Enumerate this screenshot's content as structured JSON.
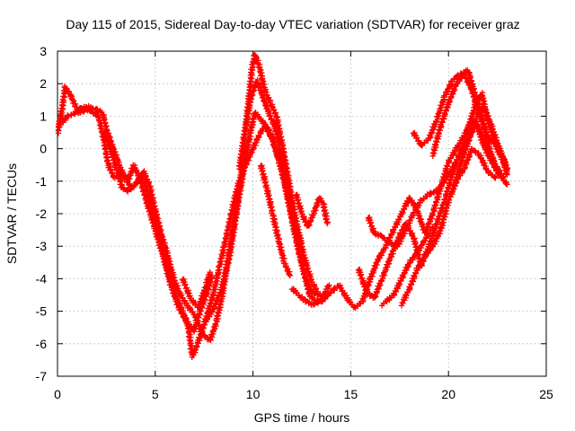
{
  "chart_data": {
    "type": "scatter",
    "title": "Day 115 of 2015, Sidereal Day-to-day VTEC variation (SDTVAR) for receiver graz",
    "xlabel": "GPS time / hours",
    "ylabel": "SDTVAR / TECUs",
    "xlim": [
      0,
      25
    ],
    "ylim": [
      -7,
      3
    ],
    "xticks": [
      "0",
      "5",
      "10",
      "15",
      "20",
      "25"
    ],
    "yticks": [
      "3",
      "2",
      "1",
      "0",
      "-1",
      "-2",
      "-3",
      "-4",
      "-5",
      "-6",
      "-7"
    ],
    "grid": true,
    "marker": "plus",
    "color": "#ff0000",
    "series": [
      {
        "name": "",
        "tracks": [
          [
            [
              0.0,
              0.5
            ],
            [
              0.2,
              1.1
            ],
            [
              0.4,
              1.9
            ],
            [
              0.7,
              1.6
            ],
            [
              1.0,
              1.2
            ],
            [
              1.5,
              1.3
            ],
            [
              2.0,
              1.2
            ],
            [
              2.3,
              1.1
            ],
            [
              2.5,
              0.6
            ],
            [
              2.8,
              0.1
            ],
            [
              3.1,
              -0.4
            ],
            [
              3.4,
              -0.9
            ],
            [
              3.8,
              -1.2
            ],
            [
              4.1,
              -1.0
            ],
            [
              4.3,
              -0.8
            ],
            [
              4.6,
              -1.3
            ],
            [
              4.9,
              -2.0
            ],
            [
              5.2,
              -2.7
            ],
            [
              5.5,
              -3.4
            ],
            [
              5.8,
              -4.1
            ],
            [
              6.1,
              -4.6
            ],
            [
              6.4,
              -5.0
            ],
            [
              6.7,
              -5.5
            ],
            [
              6.9,
              -6.4
            ],
            [
              7.1,
              -6.1
            ],
            [
              7.4,
              -5.6
            ],
            [
              7.7,
              -5.0
            ],
            [
              8.0,
              -4.4
            ],
            [
              8.3,
              -3.6
            ],
            [
              8.6,
              -2.8
            ],
            [
              8.9,
              -2.0
            ],
            [
              9.1,
              -1.4
            ],
            [
              9.4,
              -0.8
            ],
            [
              9.7,
              -0.4
            ],
            [
              10.0,
              0.0
            ],
            [
              10.3,
              0.4
            ],
            [
              10.6,
              0.7
            ],
            [
              11.0,
              0.3
            ],
            [
              11.3,
              -0.3
            ],
            [
              11.6,
              -1.0
            ],
            [
              11.9,
              -1.8
            ],
            [
              12.2,
              -2.4
            ],
            [
              12.5,
              -2.9
            ]
          ],
          [
            [
              0.1,
              0.7
            ],
            [
              0.5,
              1.0
            ],
            [
              1.0,
              1.1
            ],
            [
              1.6,
              1.2
            ],
            [
              2.1,
              1.0
            ],
            [
              2.4,
              0.2
            ],
            [
              2.6,
              -0.5
            ],
            [
              2.9,
              -0.9
            ],
            [
              3.3,
              -0.7
            ],
            [
              3.6,
              -1.0
            ],
            [
              3.9,
              -0.5
            ],
            [
              4.2,
              -0.9
            ],
            [
              4.6,
              -1.7
            ],
            [
              5.0,
              -2.5
            ],
            [
              5.4,
              -3.3
            ],
            [
              5.8,
              -4.2
            ],
            [
              6.2,
              -4.9
            ],
            [
              6.6,
              -5.3
            ],
            [
              7.0,
              -5.6
            ],
            [
              7.3,
              -5.0
            ],
            [
              7.6,
              -4.5
            ],
            [
              7.9,
              -3.9
            ]
          ],
          [
            [
              2.4,
              0.5
            ],
            [
              2.7,
              0.0
            ],
            [
              3.0,
              -0.6
            ],
            [
              3.3,
              -1.2
            ],
            [
              3.6,
              -1.3
            ],
            [
              4.0,
              -1.1
            ],
            [
              4.4,
              -0.7
            ],
            [
              4.7,
              -1.1
            ],
            [
              5.0,
              -1.9
            ],
            [
              5.3,
              -2.6
            ],
            [
              5.6,
              -3.2
            ],
            [
              5.9,
              -3.9
            ],
            [
              6.2,
              -4.4
            ],
            [
              6.6,
              -4.8
            ],
            [
              7.0,
              -5.1
            ],
            [
              7.4,
              -5.7
            ],
            [
              7.8,
              -5.9
            ],
            [
              8.1,
              -5.4
            ],
            [
              8.4,
              -4.6
            ],
            [
              8.7,
              -3.5
            ],
            [
              9.0,
              -2.4
            ],
            [
              9.3,
              -1.4
            ],
            [
              9.6,
              -0.4
            ],
            [
              9.9,
              0.6
            ],
            [
              10.1,
              1.1
            ],
            [
              10.4,
              0.9
            ],
            [
              10.8,
              0.6
            ],
            [
              11.1,
              0.1
            ],
            [
              11.5,
              -0.7
            ],
            [
              11.8,
              -1.6
            ],
            [
              12.1,
              -2.5
            ],
            [
              12.4,
              -3.3
            ],
            [
              12.7,
              -4.0
            ],
            [
              13.0,
              -4.4
            ],
            [
              13.4,
              -4.5
            ],
            [
              13.7,
              -4.6
            ]
          ],
          [
            [
              7.6,
              -5.3
            ],
            [
              8.0,
              -4.9
            ],
            [
              8.4,
              -4.3
            ],
            [
              8.8,
              -3.3
            ],
            [
              9.1,
              -2.2
            ],
            [
              9.4,
              -0.9
            ],
            [
              9.6,
              0.5
            ],
            [
              9.8,
              1.6
            ],
            [
              9.95,
              2.5
            ],
            [
              10.1,
              2.9
            ],
            [
              10.3,
              2.6
            ],
            [
              10.6,
              1.8
            ],
            [
              10.9,
              1.4
            ],
            [
              11.2,
              1.0
            ],
            [
              11.5,
              0.1
            ],
            [
              11.8,
              -0.9
            ],
            [
              12.1,
              -1.9
            ],
            [
              12.4,
              -2.8
            ],
            [
              12.7,
              -3.5
            ],
            [
              13.0,
              -4.1
            ],
            [
              13.3,
              -4.4
            ]
          ],
          [
            [
              9.3,
              -0.6
            ],
            [
              9.6,
              0.6
            ],
            [
              9.9,
              1.6
            ],
            [
              10.2,
              2.1
            ],
            [
              10.5,
              1.6
            ],
            [
              10.8,
              1.1
            ],
            [
              11.1,
              0.7
            ],
            [
              11.4,
              0.0
            ],
            [
              11.7,
              -1.0
            ],
            [
              12.0,
              -2.0
            ],
            [
              12.3,
              -3.0
            ],
            [
              12.6,
              -3.8
            ],
            [
              12.9,
              -4.5
            ],
            [
              13.2,
              -4.7
            ],
            [
              13.5,
              -4.6
            ],
            [
              13.9,
              -4.2
            ]
          ],
          [
            [
              10.4,
              -0.5
            ],
            [
              10.7,
              -1.2
            ],
            [
              11.0,
              -2.0
            ],
            [
              11.3,
              -2.8
            ],
            [
              11.6,
              -3.5
            ],
            [
              11.9,
              -3.9
            ]
          ],
          [
            [
              12.2,
              -1.4
            ],
            [
              12.5,
              -2.0
            ],
            [
              12.8,
              -2.4
            ],
            [
              13.1,
              -2.0
            ],
            [
              13.4,
              -1.5
            ],
            [
              13.6,
              -1.7
            ],
            [
              13.8,
              -2.3
            ]
          ],
          [
            [
              12.0,
              -4.3
            ],
            [
              12.5,
              -4.6
            ],
            [
              13.0,
              -4.8
            ],
            [
              13.5,
              -4.7
            ],
            [
              14.0,
              -4.4
            ],
            [
              14.4,
              -4.2
            ],
            [
              14.8,
              -4.6
            ],
            [
              15.2,
              -4.9
            ],
            [
              15.6,
              -4.7
            ],
            [
              16.0,
              -4.0
            ],
            [
              16.4,
              -3.4
            ],
            [
              16.8,
              -3.0
            ],
            [
              17.2,
              -2.5
            ],
            [
              17.6,
              -2.0
            ],
            [
              18.0,
              -1.5
            ],
            [
              18.4,
              -1.9
            ],
            [
              18.8,
              -2.6
            ],
            [
              19.2,
              -2.0
            ],
            [
              19.6,
              -1.2
            ],
            [
              20.0,
              -0.4
            ],
            [
              20.4,
              0.0
            ],
            [
              20.8,
              0.4
            ],
            [
              21.2,
              0.9
            ],
            [
              21.6,
              0.6
            ],
            [
              22.0,
              0.0
            ],
            [
              22.4,
              -0.5
            ],
            [
              22.8,
              -0.9
            ]
          ],
          [
            [
              15.4,
              -3.7
            ],
            [
              15.8,
              -4.4
            ],
            [
              16.2,
              -4.6
            ],
            [
              16.6,
              -4.0
            ],
            [
              17.0,
              -3.4
            ],
            [
              17.4,
              -2.8
            ],
            [
              17.8,
              -2.3
            ],
            [
              18.2,
              -2.7
            ],
            [
              18.6,
              -3.6
            ],
            [
              19.0,
              -3.0
            ],
            [
              19.4,
              -2.3
            ],
            [
              19.8,
              -1.6
            ],
            [
              20.2,
              -0.8
            ],
            [
              20.6,
              -0.1
            ],
            [
              21.0,
              0.6
            ],
            [
              21.4,
              1.4
            ],
            [
              21.7,
              1.7
            ],
            [
              22.0,
              0.9
            ],
            [
              22.4,
              0.2
            ],
            [
              22.8,
              -0.3
            ],
            [
              23.0,
              -0.7
            ]
          ],
          [
            [
              15.9,
              -2.1
            ],
            [
              16.2,
              -2.6
            ],
            [
              16.6,
              -2.7
            ],
            [
              17.0,
              -2.9
            ],
            [
              17.4,
              -3.0
            ],
            [
              17.8,
              -2.5
            ],
            [
              18.2,
              -2.0
            ],
            [
              18.6,
              -1.6
            ],
            [
              19.0,
              -1.4
            ],
            [
              19.4,
              -1.3
            ],
            [
              19.8,
              -1.0
            ],
            [
              20.2,
              -0.6
            ],
            [
              20.6,
              -0.2
            ],
            [
              21.0,
              0.3
            ],
            [
              21.4,
              0.8
            ],
            [
              21.8,
              0.1
            ],
            [
              22.2,
              -0.4
            ],
            [
              22.6,
              -0.8
            ],
            [
              23.0,
              -1.1
            ]
          ],
          [
            [
              17.6,
              -4.8
            ],
            [
              18.0,
              -4.3
            ],
            [
              18.4,
              -3.7
            ],
            [
              18.8,
              -3.3
            ],
            [
              19.2,
              -3.0
            ],
            [
              19.6,
              -2.5
            ],
            [
              20.0,
              -1.6
            ],
            [
              20.4,
              -1.0
            ],
            [
              20.8,
              -0.6
            ],
            [
              21.2,
              0.0
            ],
            [
              21.6,
              -0.2
            ],
            [
              22.0,
              -0.7
            ],
            [
              22.4,
              -0.9
            ]
          ],
          [
            [
              18.2,
              0.5
            ],
            [
              18.6,
              0.1
            ],
            [
              19.0,
              0.3
            ],
            [
              19.4,
              0.9
            ],
            [
              19.8,
              1.6
            ],
            [
              20.2,
              2.1
            ],
            [
              20.6,
              2.3
            ],
            [
              21.0,
              2.4
            ],
            [
              21.4,
              1.6
            ],
            [
              21.8,
              0.8
            ],
            [
              22.1,
              0.0
            ],
            [
              22.4,
              -0.6
            ],
            [
              22.7,
              -0.8
            ]
          ],
          [
            [
              19.2,
              -0.2
            ],
            [
              19.6,
              0.7
            ],
            [
              20.0,
              1.4
            ],
            [
              20.4,
              2.0
            ],
            [
              20.8,
              2.3
            ],
            [
              21.2,
              1.8
            ],
            [
              21.6,
              1.0
            ],
            [
              22.0,
              0.4
            ],
            [
              22.4,
              0.1
            ],
            [
              22.8,
              -0.4
            ],
            [
              23.0,
              -0.8
            ]
          ],
          [
            [
              20.2,
              -1.3
            ],
            [
              20.6,
              -0.5
            ],
            [
              21.0,
              0.2
            ],
            [
              21.4,
              0.9
            ],
            [
              21.8,
              1.3
            ],
            [
              22.2,
              0.7
            ],
            [
              22.6,
              0.0
            ],
            [
              23.0,
              -0.6
            ]
          ],
          [
            [
              16.6,
              -4.8
            ],
            [
              17.2,
              -4.5
            ],
            [
              17.6,
              -4.0
            ],
            [
              18.0,
              -3.5
            ],
            [
              18.4,
              -3.2
            ],
            [
              18.8,
              -2.8
            ],
            [
              19.2,
              -2.4
            ]
          ],
          [
            [
              6.4,
              -4.0
            ],
            [
              6.8,
              -4.6
            ],
            [
              7.2,
              -4.9
            ],
            [
              7.6,
              -4.2
            ],
            [
              7.8,
              -3.8
            ]
          ]
        ]
      }
    ]
  }
}
